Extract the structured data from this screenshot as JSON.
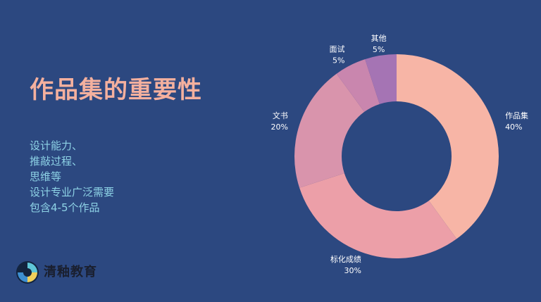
{
  "slide": {
    "title": "作品集的重要性",
    "bullets": [
      "设计能力、",
      "推敲过程、",
      "思维等",
      "设计专业广泛需要",
      "包含4-5个作品"
    ]
  },
  "logo": {
    "name": "清釉教育",
    "icon": "logo-icon"
  },
  "colors": {
    "background": "#2c4880",
    "title": "#f4b09e",
    "bullets": "#8ed3e6"
  },
  "chart_data": {
    "type": "pie",
    "donut": true,
    "categories": [
      "作品集",
      "标化成绩",
      "文书",
      "面试",
      "其他"
    ],
    "values": [
      40,
      30,
      20,
      5,
      5
    ],
    "labels": [
      "40%",
      "30%",
      "20%",
      "5%",
      "5%"
    ],
    "colors": [
      "#f7b5a6",
      "#ec9fa8",
      "#d994ac",
      "#c986ae",
      "#a574b4"
    ],
    "start_angle_deg": 0,
    "direction": "clockwise",
    "legend": "none"
  }
}
